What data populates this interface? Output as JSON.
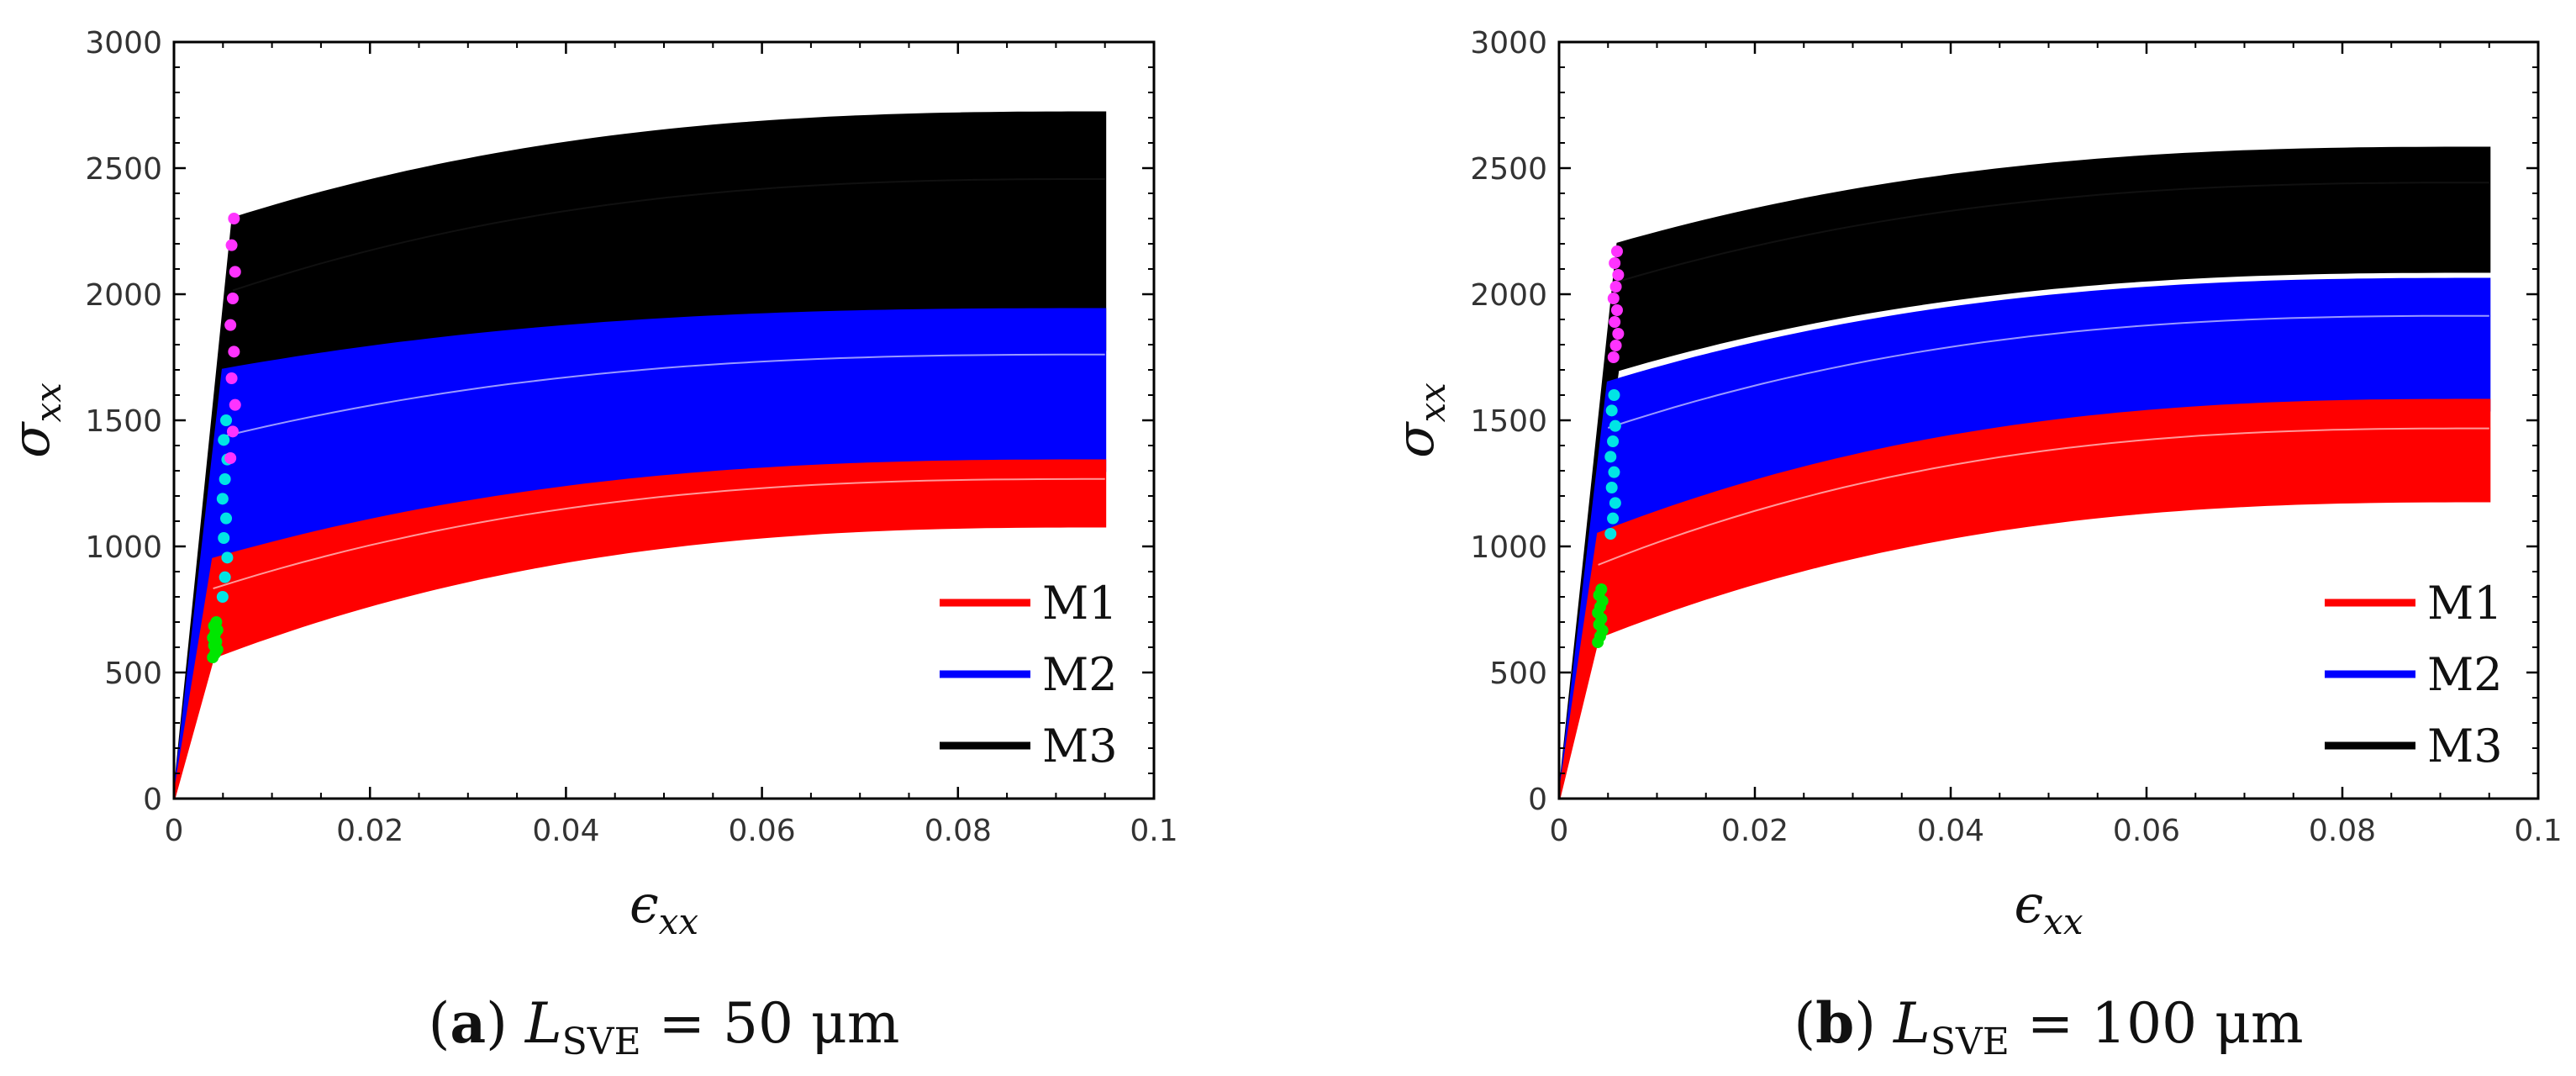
{
  "chart_data": [
    {
      "type": "line",
      "panel": "a",
      "caption": {
        "label": "a",
        "symbol": "L",
        "subscript": "SVE",
        "rest": " = 50 μm"
      },
      "xlabel": {
        "base": "ϵ",
        "sub": "xx"
      },
      "ylabel": {
        "base": "σ",
        "sub": "xx"
      },
      "xlim": [
        0,
        0.1
      ],
      "ylim": [
        0,
        3000
      ],
      "xticks": [
        0,
        0.02,
        0.04,
        0.06,
        0.08,
        0.1
      ],
      "xtick_labels": [
        "0",
        "0.02",
        "0.04",
        "0.06",
        "0.08",
        "0.1"
      ],
      "yticks": [
        0,
        500,
        1000,
        1500,
        2000,
        2500,
        3000
      ],
      "ytick_labels": [
        "0",
        "500",
        "1000",
        "1500",
        "2000",
        "2500",
        "3000"
      ],
      "legend": {
        "position": "bottom-right",
        "entries": [
          "M1",
          "M2",
          "M3"
        ]
      },
      "series": [
        {
          "name": "M1",
          "color": "#ff0000",
          "yield_strain": 0.004,
          "yield_lower": 560,
          "yield_upper": 950,
          "end_strain": 0.095,
          "end_lower": 1080,
          "end_upper": 1340
        },
        {
          "name": "M2",
          "color": "#0000ff",
          "yield_strain": 0.005,
          "yield_lower": 820,
          "yield_upper": 1700,
          "end_strain": 0.095,
          "end_lower": 1300,
          "end_upper": 1940
        },
        {
          "name": "M3",
          "color": "#000000",
          "yield_strain": 0.006,
          "yield_lower": 1350,
          "yield_upper": 2300,
          "end_strain": 0.095,
          "end_lower": 1780,
          "end_upper": 2720
        }
      ],
      "yield_markers": [
        {
          "color": "#00e600",
          "strain": 0.0042,
          "stress_range": [
            560,
            700
          ]
        },
        {
          "color": "#00e5e5",
          "strain": 0.0052,
          "stress_range": [
            800,
            1500
          ]
        },
        {
          "color": "#ff33ff",
          "strain": 0.006,
          "stress_range": [
            1350,
            2300
          ]
        }
      ]
    },
    {
      "type": "line",
      "panel": "b",
      "caption": {
        "label": "b",
        "symbol": "L",
        "subscript": "SVE",
        "rest": " = 100 μm"
      },
      "xlabel": {
        "base": "ϵ",
        "sub": "xx"
      },
      "ylabel": {
        "base": "σ",
        "sub": "xx"
      },
      "xlim": [
        0,
        0.1
      ],
      "ylim": [
        0,
        3000
      ],
      "xticks": [
        0,
        0.02,
        0.04,
        0.06,
        0.08,
        0.1
      ],
      "xtick_labels": [
        "0",
        "0.02",
        "0.04",
        "0.06",
        "0.08",
        "0.1"
      ],
      "yticks": [
        0,
        500,
        1000,
        1500,
        2000,
        2500,
        3000
      ],
      "ytick_labels": [
        "0",
        "500",
        "1000",
        "1500",
        "2000",
        "2500",
        "3000"
      ],
      "legend": {
        "position": "bottom-right",
        "entries": [
          "M1",
          "M2",
          "M3"
        ]
      },
      "series": [
        {
          "name": "M1",
          "color": "#ff0000",
          "yield_strain": 0.004,
          "yield_lower": 640,
          "yield_upper": 1050,
          "end_strain": 0.095,
          "end_lower": 1180,
          "end_upper": 1580
        },
        {
          "name": "M2",
          "color": "#0000ff",
          "yield_strain": 0.005,
          "yield_lower": 1050,
          "yield_upper": 1650,
          "end_strain": 0.095,
          "end_lower": 1540,
          "end_upper": 2060
        },
        {
          "name": "M3",
          "color": "#000000",
          "yield_strain": 0.006,
          "yield_lower": 1700,
          "yield_upper": 2200,
          "end_strain": 0.095,
          "end_lower": 2090,
          "end_upper": 2580
        }
      ],
      "yield_markers": [
        {
          "color": "#00e600",
          "strain": 0.0042,
          "stress_range": [
            620,
            830
          ]
        },
        {
          "color": "#00e5e5",
          "strain": 0.0055,
          "stress_range": [
            1050,
            1600
          ]
        },
        {
          "color": "#ff33ff",
          "strain": 0.0058,
          "stress_range": [
            1750,
            2170
          ]
        }
      ]
    }
  ]
}
